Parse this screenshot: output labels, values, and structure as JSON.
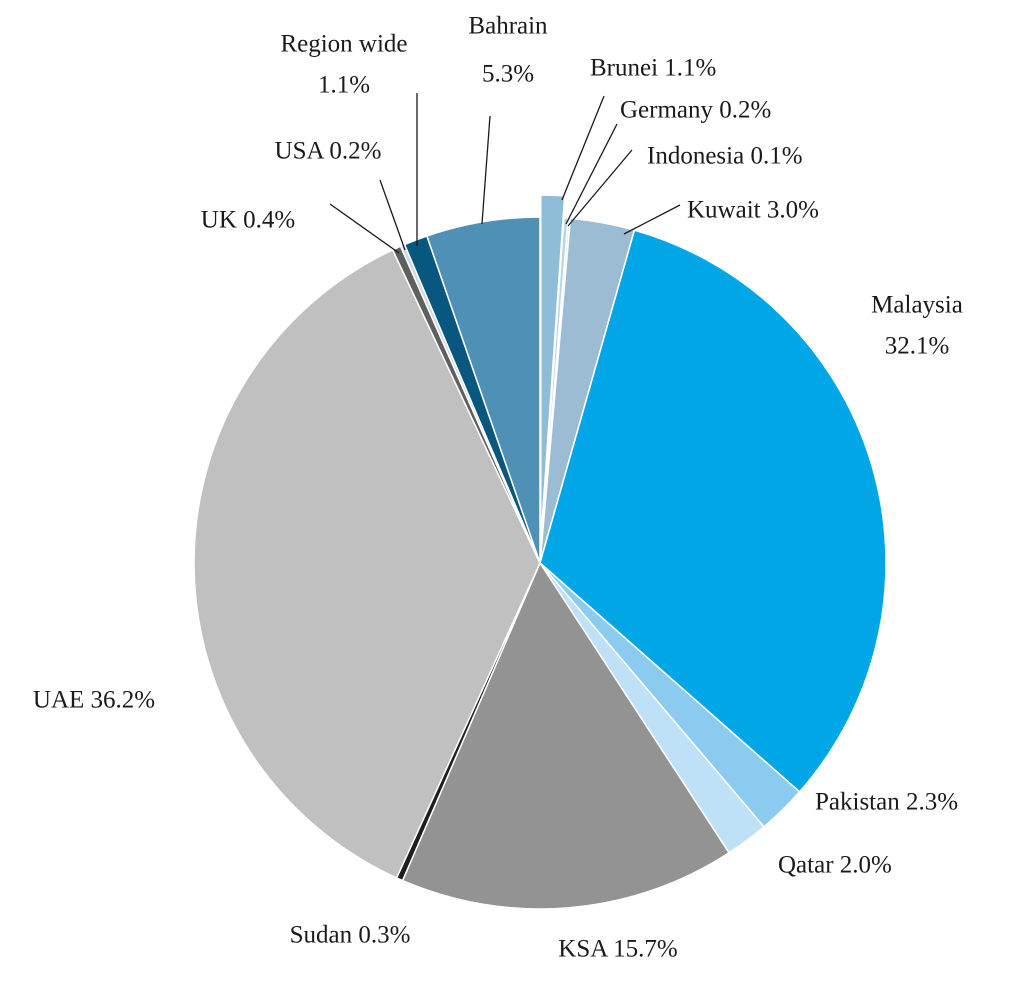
{
  "chart_data": {
    "type": "pie",
    "title": "",
    "unit": "%",
    "slices": [
      {
        "label": "Brunei",
        "value": 1.1,
        "color": "#8fbcd9",
        "label_text": [
          "Brunei 1.1%"
        ]
      },
      {
        "label": "Germany",
        "value": 0.2,
        "color": "#bcd4e6",
        "label_text": [
          "Germany 0.2%"
        ]
      },
      {
        "label": "Indonesia",
        "value": 0.1,
        "color": "#d7e5f0",
        "label_text": [
          "Indonesia 0.1%"
        ]
      },
      {
        "label": "Kuwait",
        "value": 3.0,
        "color": "#9cbcd3",
        "label_text": [
          "Kuwait 3.0%"
        ]
      },
      {
        "label": "Malaysia",
        "value": 32.1,
        "color": "#00a6e6",
        "label_text": [
          "Malaysia",
          "32.1%"
        ]
      },
      {
        "label": "Pakistan",
        "value": 2.3,
        "color": "#8ccbf0",
        "label_text": [
          "Pakistan 2.3%"
        ]
      },
      {
        "label": "Qatar",
        "value": 2.0,
        "color": "#bfe1f7",
        "label_text": [
          "Qatar 2.0%"
        ]
      },
      {
        "label": "KSA",
        "value": 15.7,
        "color": "#939393",
        "label_text": [
          "KSA 15.7%"
        ]
      },
      {
        "label": "Sudan",
        "value": 0.3,
        "color": "#1e1e1e",
        "label_text": [
          "Sudan 0.3%"
        ]
      },
      {
        "label": "UAE",
        "value": 36.2,
        "color": "#c0c0c0",
        "label_text": [
          "UAE 36.2%"
        ]
      },
      {
        "label": "UK",
        "value": 0.4,
        "color": "#5f5f5f",
        "label_text": [
          "UK 0.4%"
        ]
      },
      {
        "label": "USA",
        "value": 0.2,
        "color": "#cfd9e3",
        "label_text": [
          "USA 0.2%"
        ]
      },
      {
        "label": "Region wide",
        "value": 1.1,
        "color": "#08577f",
        "label_text": [
          "Region wide",
          "1.1%"
        ]
      },
      {
        "label": "Bahrain",
        "value": 5.3,
        "color": "#4f91b6",
        "label_text": [
          "Bahrain",
          "5.3%"
        ]
      }
    ]
  }
}
